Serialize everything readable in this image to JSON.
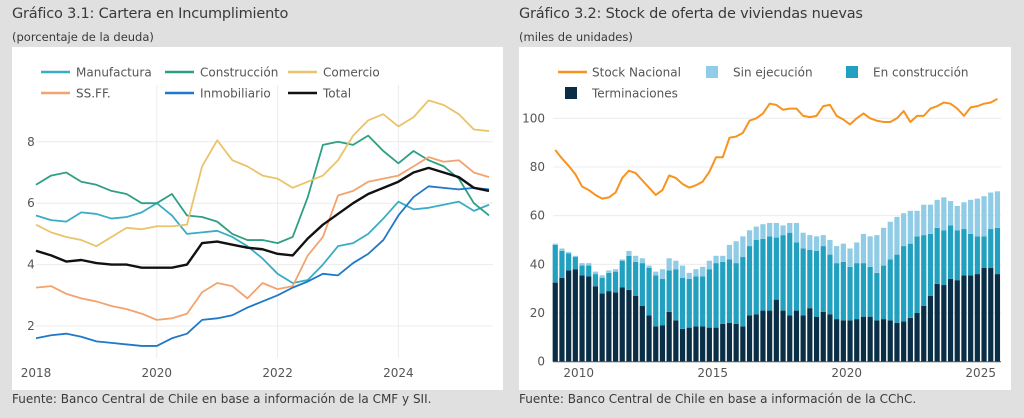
{
  "chart_data": [
    {
      "type": "line",
      "title": "Gráfico 3.1: Cartera en Incumplimiento",
      "subtitle": "(porcentaje de la deuda)",
      "source": "Fuente: Banco Central de Chile en base a información de la CMF y SII.",
      "xlabel": "",
      "ylabel": "",
      "x_ticks": [
        "2018",
        "2020",
        "2022",
        "2024"
      ],
      "y_ticks": [
        2,
        4,
        6,
        8
      ],
      "ylim": [
        1.2,
        9.6
      ],
      "grid": true,
      "legend_position": "top",
      "periods": [
        "2018-Q1",
        "2018-Q2",
        "2018-Q3",
        "2018-Q4",
        "2019-Q1",
        "2019-Q2",
        "2019-Q3",
        "2019-Q4",
        "2020-Q1",
        "2020-Q2",
        "2020-Q3",
        "2020-Q4",
        "2021-Q1",
        "2021-Q2",
        "2021-Q3",
        "2021-Q4",
        "2022-Q1",
        "2022-Q2",
        "2022-Q3",
        "2022-Q4",
        "2023-Q1",
        "2023-Q2",
        "2023-Q3",
        "2023-Q4",
        "2024-Q1",
        "2024-Q2",
        "2024-Q3",
        "2024-Q4",
        "2025-Q1",
        "2025-Q2",
        "2025-Q3"
      ],
      "series": [
        {
          "name": "Manufactura",
          "color": "#3aacc6",
          "values": [
            5.6,
            5.45,
            5.4,
            5.7,
            5.65,
            5.5,
            5.55,
            5.7,
            6.0,
            5.6,
            5.0,
            5.05,
            5.1,
            4.9,
            4.6,
            4.2,
            3.7,
            3.4,
            3.5,
            4.0,
            4.6,
            4.7,
            5.0,
            5.5,
            6.05,
            5.8,
            5.85,
            5.95,
            6.05,
            5.75,
            5.95
          ]
        },
        {
          "name": "Construcción",
          "color": "#2f9f84",
          "values": [
            6.6,
            6.9,
            7.0,
            6.7,
            6.6,
            6.4,
            6.3,
            6.0,
            6.0,
            6.3,
            5.6,
            5.55,
            5.4,
            5.0,
            4.8,
            4.8,
            4.7,
            4.9,
            6.2,
            7.9,
            8.0,
            7.9,
            8.2,
            7.7,
            7.3,
            7.7,
            7.4,
            7.2,
            6.8,
            6.0,
            5.6
          ]
        },
        {
          "name": "Comercio",
          "color": "#e9c46a",
          "values": [
            5.3,
            5.05,
            4.9,
            4.8,
            4.6,
            4.9,
            5.2,
            5.15,
            5.25,
            5.25,
            5.3,
            7.2,
            8.05,
            7.4,
            7.2,
            6.9,
            6.8,
            6.5,
            6.7,
            6.9,
            7.4,
            8.2,
            8.7,
            8.9,
            8.5,
            8.8,
            9.35,
            9.2,
            8.9,
            8.4,
            8.35
          ]
        },
        {
          "name": "SS.FF.",
          "color": "#f2a36f",
          "values": [
            3.25,
            3.3,
            3.05,
            2.9,
            2.8,
            2.65,
            2.55,
            2.4,
            2.2,
            2.25,
            2.4,
            3.1,
            3.4,
            3.3,
            2.9,
            3.4,
            3.2,
            3.3,
            4.3,
            4.9,
            6.25,
            6.4,
            6.7,
            6.8,
            6.9,
            7.2,
            7.5,
            7.35,
            7.4,
            7.0,
            6.85
          ]
        },
        {
          "name": "Inmobiliario",
          "color": "#1f78c8",
          "values": [
            1.6,
            1.7,
            1.75,
            1.65,
            1.5,
            1.45,
            1.4,
            1.35,
            1.35,
            1.6,
            1.75,
            2.2,
            2.25,
            2.35,
            2.6,
            2.8,
            3.0,
            3.25,
            3.45,
            3.7,
            3.65,
            4.05,
            4.35,
            4.8,
            5.6,
            6.2,
            6.55,
            6.5,
            6.45,
            6.5,
            6.45
          ]
        },
        {
          "name": "Total",
          "color": "#111111",
          "values": [
            4.45,
            4.3,
            4.1,
            4.15,
            4.05,
            4.0,
            4.0,
            3.9,
            3.9,
            3.9,
            4.0,
            4.7,
            4.75,
            4.65,
            4.55,
            4.5,
            4.35,
            4.3,
            4.85,
            5.3,
            5.65,
            6.0,
            6.3,
            6.5,
            6.7,
            7.0,
            7.15,
            7.0,
            6.85,
            6.5,
            6.4
          ]
        }
      ]
    },
    {
      "type": "bar",
      "stacked": true,
      "title": "Gráfico 3.2: Stock de oferta de viviendas nuevas",
      "subtitle": "(miles de unidades)",
      "source": "Fuente: Banco Central de Chile en base a información de la CChC.",
      "xlabel": "",
      "ylabel": "",
      "x_ticks": [
        "2010",
        "2015",
        "2020",
        "2025"
      ],
      "y_ticks": [
        0,
        20,
        40,
        60,
        80,
        100
      ],
      "ylim": [
        0,
        115
      ],
      "grid": true,
      "legend_position": "top",
      "periods_first": "2009-Q1",
      "periods_last": "2025-Q3",
      "frequency": "quarterly",
      "series": [
        {
          "name": "Terminaciones",
          "kind": "bar",
          "color": "#0b2e47",
          "values": [
            32.5,
            34.5,
            37.5,
            38,
            35.5,
            35,
            31,
            28,
            29,
            28.5,
            30.5,
            29.5,
            27,
            23,
            19,
            14.5,
            15,
            20.5,
            17,
            13.5,
            14,
            14.5,
            14.5,
            14,
            14,
            15.5,
            16,
            15.5,
            14.5,
            19,
            19.5,
            21,
            21,
            25.5,
            21,
            19,
            21,
            19,
            22,
            18.5,
            20.5,
            19.5,
            17.5,
            17,
            17,
            17.5,
            18.5,
            18.5,
            17,
            17.5,
            17,
            16,
            16.5,
            18,
            20,
            23,
            27,
            32,
            31.5,
            34,
            33.5,
            35.5,
            35.5,
            36,
            38.5,
            38.5,
            36
          ]
        },
        {
          "name": "En construcción",
          "kind": "bar",
          "color": "#22a0c0",
          "values": [
            15.5,
            11,
            7,
            5,
            4,
            4.5,
            5,
            6.5,
            7.5,
            8.5,
            11,
            14,
            14,
            17.5,
            19.5,
            21,
            19,
            17,
            21,
            21,
            20,
            20.5,
            20.5,
            24,
            26.5,
            25.5,
            26,
            25,
            28.5,
            28.5,
            30.5,
            29.5,
            30.5,
            25.5,
            31,
            34,
            28,
            27.5,
            24,
            27,
            27,
            24.5,
            23,
            24,
            22,
            23,
            22,
            20.5,
            19.5,
            22,
            25,
            28,
            31,
            30.5,
            31.5,
            29,
            25.5,
            23,
            22.5,
            22,
            20.5,
            19,
            17,
            15.5,
            13,
            16,
            19
          ]
        },
        {
          "name": "Sin ejecución",
          "kind": "bar",
          "color": "#90cce6",
          "values": [
            0.5,
            1,
            0.5,
            0.5,
            1,
            1,
            1,
            1,
            1,
            1,
            0.5,
            2,
            2.5,
            2,
            1,
            1.5,
            4,
            5,
            3.5,
            5,
            2.5,
            3,
            4,
            3.5,
            3,
            2.5,
            6,
            9,
            8.5,
            6.5,
            5.5,
            6,
            5.5,
            6,
            4,
            4,
            8,
            6.5,
            6,
            6,
            4.5,
            6,
            7,
            7.5,
            7.5,
            8.5,
            12,
            12.5,
            15.5,
            15.5,
            15.5,
            15.5,
            13.5,
            13.5,
            10.5,
            12.5,
            12,
            11.5,
            13.5,
            10,
            10,
            11,
            14,
            15.5,
            16.5,
            15,
            15
          ]
        },
        {
          "name": "Stock Nacional",
          "kind": "line",
          "color": "#f7931e",
          "values": [
            87,
            83.5,
            80.5,
            77,
            72,
            70.5,
            68.5,
            67,
            67.5,
            69.5,
            75.5,
            78.5,
            77.5,
            74.5,
            71.5,
            68.5,
            70.5,
            76.5,
            75.5,
            73,
            71.5,
            72.5,
            74,
            78,
            84,
            84,
            92,
            92.5,
            94,
            99,
            100,
            102,
            106,
            105.5,
            103.5,
            104,
            104,
            101,
            100.5,
            101,
            105,
            105.5,
            101,
            99.5,
            97.5,
            100,
            102,
            100,
            99,
            98.5,
            98.5,
            100,
            103,
            98.5,
            101,
            101,
            104,
            105,
            106.5,
            106,
            104,
            101,
            104.5,
            105,
            106,
            106.5,
            108
          ]
        }
      ]
    }
  ]
}
